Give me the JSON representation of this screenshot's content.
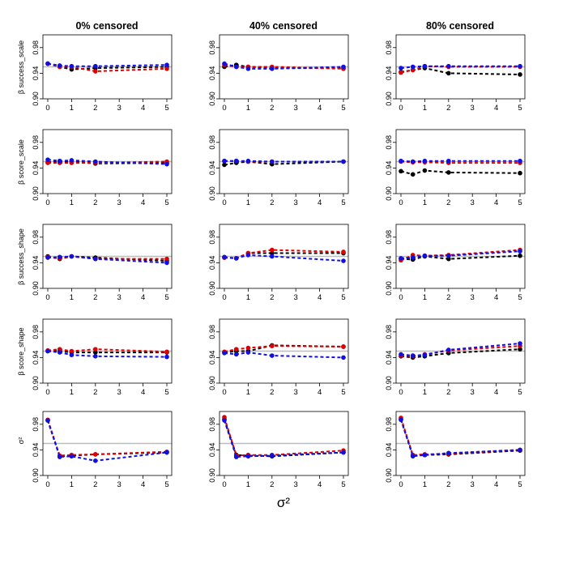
{
  "figure": {
    "xlabel": "σ²"
  },
  "columns": [
    "0% censored",
    "40% censored",
    "80% censored"
  ],
  "row_labels": [
    "β success_scale",
    "β score_scale",
    "β success_shape",
    "β score_shape",
    "σ²"
  ],
  "colors": {
    "black": "#000000",
    "red": "#e00000",
    "blue": "#1010e0",
    "reference": "#bdbdbd"
  },
  "chart_data": {
    "type": "line",
    "layout": "5 rows x 3 columns of small-multiple panels",
    "x": [
      0,
      0.5,
      1,
      2,
      5
    ],
    "x_ticks": [
      "0",
      "1",
      "2",
      "3",
      "4",
      "5"
    ],
    "xlim": [
      0,
      5
    ],
    "y_ticks": [
      "0.90",
      "0.94",
      "0.98"
    ],
    "ylim": [
      0.9,
      1.0
    ],
    "reference_line": 0.95,
    "series_names": [
      "black",
      "red",
      "blue"
    ],
    "panels": [
      [
        {
          "series": [
            {
              "name": "black",
              "values": [
                0.955,
                0.95,
                0.946,
                0.948,
                0.95
              ]
            },
            {
              "name": "red",
              "values": [
                0.955,
                0.95,
                0.95,
                0.943,
                0.947
              ]
            },
            {
              "name": "blue",
              "values": [
                0.955,
                0.952,
                0.951,
                0.951,
                0.953
              ]
            }
          ]
        },
        {
          "series": [
            {
              "name": "black",
              "values": [
                0.95,
                0.953,
                0.95,
                0.948,
                0.948
              ]
            },
            {
              "name": "red",
              "values": [
                0.953,
                0.95,
                0.95,
                0.95,
                0.947
              ]
            },
            {
              "name": "blue",
              "values": [
                0.955,
                0.95,
                0.947,
                0.947,
                0.95
              ]
            }
          ]
        },
        {
          "series": [
            {
              "name": "black",
              "values": [
                0.942,
                0.945,
                0.948,
                0.94,
                0.938
              ]
            },
            {
              "name": "red",
              "values": [
                0.941,
                0.945,
                0.951,
                0.95,
                0.95
              ]
            },
            {
              "name": "blue",
              "values": [
                0.948,
                0.95,
                0.951,
                0.951,
                0.951
              ]
            }
          ]
        }
      ],
      [
        {
          "series": [
            {
              "name": "black",
              "values": [
                0.949,
                0.95,
                0.95,
                0.947,
                0.948
              ]
            },
            {
              "name": "red",
              "values": [
                0.948,
                0.948,
                0.948,
                0.948,
                0.95
              ]
            },
            {
              "name": "blue",
              "values": [
                0.953,
                0.951,
                0.952,
                0.95,
                0.946
              ]
            }
          ]
        },
        {
          "series": [
            {
              "name": "black",
              "values": [
                0.945,
                0.948,
                0.95,
                0.946,
                0.95
              ]
            },
            {
              "name": "red",
              "values": [
                0.951,
                0.951,
                0.95,
                0.95,
                0.95
              ]
            },
            {
              "name": "blue",
              "values": [
                0.951,
                0.951,
                0.951,
                0.95,
                0.95
              ]
            }
          ]
        },
        {
          "series": [
            {
              "name": "black",
              "values": [
                0.935,
                0.93,
                0.936,
                0.933,
                0.932
              ]
            },
            {
              "name": "red",
              "values": [
                0.95,
                0.949,
                0.949,
                0.948,
                0.948
              ]
            },
            {
              "name": "blue",
              "values": [
                0.951,
                0.95,
                0.951,
                0.951,
                0.951
              ]
            }
          ]
        }
      ],
      [
        {
          "series": [
            {
              "name": "black",
              "values": [
                0.95,
                0.946,
                0.95,
                0.948,
                0.943
              ]
            },
            {
              "name": "red",
              "values": [
                0.949,
                0.947,
                0.95,
                0.946,
                0.946
              ]
            },
            {
              "name": "blue",
              "values": [
                0.948,
                0.949,
                0.95,
                0.946,
                0.94
              ]
            }
          ]
        },
        {
          "series": [
            {
              "name": "black",
              "values": [
                0.948,
                0.947,
                0.955,
                0.955,
                0.955
              ]
            },
            {
              "name": "red",
              "values": [
                0.948,
                0.947,
                0.955,
                0.96,
                0.957
              ]
            },
            {
              "name": "blue",
              "values": [
                0.949,
                0.947,
                0.952,
                0.95,
                0.943
              ]
            }
          ]
        },
        {
          "series": [
            {
              "name": "black",
              "values": [
                0.946,
                0.945,
                0.95,
                0.946,
                0.951
              ]
            },
            {
              "name": "red",
              "values": [
                0.944,
                0.952,
                0.951,
                0.952,
                0.96
              ]
            },
            {
              "name": "blue",
              "values": [
                0.947,
                0.948,
                0.951,
                0.951,
                0.958
              ]
            }
          ]
        }
      ],
      [
        {
          "series": [
            {
              "name": "black",
              "values": [
                0.95,
                0.95,
                0.948,
                0.948,
                0.948
              ]
            },
            {
              "name": "red",
              "values": [
                0.951,
                0.953,
                0.95,
                0.953,
                0.949
              ]
            },
            {
              "name": "blue",
              "values": [
                0.95,
                0.948,
                0.944,
                0.942,
                0.941
              ]
            }
          ]
        },
        {
          "series": [
            {
              "name": "black",
              "values": [
                0.948,
                0.95,
                0.95,
                0.959,
                0.957
              ]
            },
            {
              "name": "red",
              "values": [
                0.949,
                0.953,
                0.955,
                0.958,
                0.957
              ]
            },
            {
              "name": "blue",
              "values": [
                0.947,
                0.945,
                0.948,
                0.943,
                0.94
              ]
            }
          ]
        },
        {
          "series": [
            {
              "name": "black",
              "values": [
                0.942,
                0.94,
                0.942,
                0.947,
                0.953
              ]
            },
            {
              "name": "red",
              "values": [
                0.943,
                0.942,
                0.945,
                0.951,
                0.958
              ]
            },
            {
              "name": "blue",
              "values": [
                0.945,
                0.943,
                0.944,
                0.952,
                0.962
              ]
            }
          ]
        }
      ],
      [
        {
          "series": [
            {
              "name": "black",
              "values": [
                0.986,
                0.93,
                0.931,
                0.933,
                0.936
              ]
            },
            {
              "name": "red",
              "values": [
                0.987,
                0.931,
                0.932,
                0.933,
                0.937
              ]
            },
            {
              "name": "blue",
              "values": [
                0.986,
                0.929,
                0.93,
                0.923,
                0.936
              ]
            }
          ]
        },
        {
          "series": [
            {
              "name": "black",
              "values": [
                0.988,
                0.932,
                0.931,
                0.93,
                0.936
              ]
            },
            {
              "name": "red",
              "values": [
                0.991,
                0.931,
                0.932,
                0.932,
                0.939
              ]
            },
            {
              "name": "blue",
              "values": [
                0.986,
                0.929,
                0.93,
                0.931,
                0.936
              ]
            }
          ]
        },
        {
          "series": [
            {
              "name": "black",
              "values": [
                0.988,
                0.931,
                0.932,
                0.933,
                0.939
              ]
            },
            {
              "name": "red",
              "values": [
                0.99,
                0.932,
                0.933,
                0.934,
                0.94
              ]
            },
            {
              "name": "blue",
              "values": [
                0.987,
                0.93,
                0.932,
                0.935,
                0.94
              ]
            }
          ]
        }
      ]
    ]
  }
}
